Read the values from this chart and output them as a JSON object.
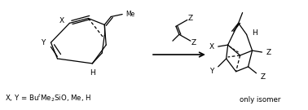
{
  "bg_color": "#ffffff",
  "text_color": "#000000",
  "figsize": [
    3.78,
    1.35
  ],
  "dpi": 100,
  "labels": {
    "X_diene": "X",
    "Y_diene": "Y",
    "H_diene": "H",
    "Z1_dienophile": "Z",
    "Z2_dienophile": "Z",
    "X_product": "X",
    "Y_product": "Y",
    "H_product": "H",
    "Z1_product": "Z",
    "Z2_product": "Z",
    "bottom_left": "X, Y = Bu$^t$Me$_2$SiO, Me, H",
    "only_isomer": "only isomer"
  },
  "font_size": 6.5,
  "lw": 0.9
}
